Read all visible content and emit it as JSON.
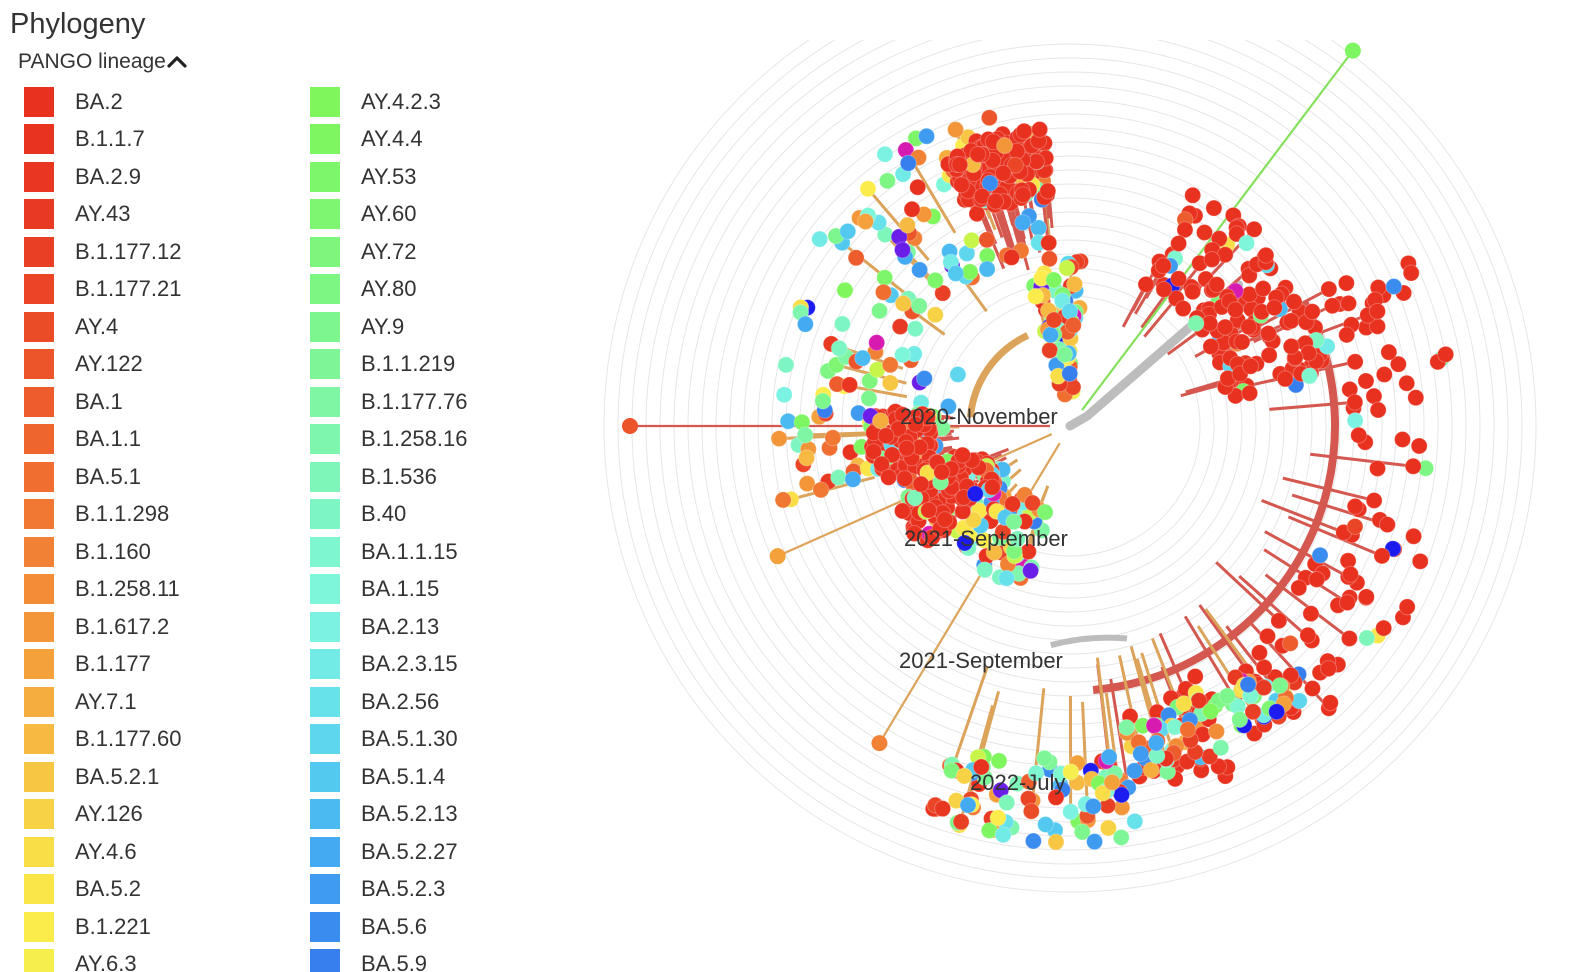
{
  "panel": {
    "title": "Phylogeny",
    "legend_header": "PANGO lineage",
    "legend_toggle_icon": "chevron-up-icon"
  },
  "legend": {
    "columns": [
      [
        {
          "label": "BA.2",
          "color": "#e8311f"
        },
        {
          "label": "B.1.1.7",
          "color": "#e8331f"
        },
        {
          "label": "BA.2.9",
          "color": "#e83620"
        },
        {
          "label": "AY.43",
          "color": "#e83a22"
        },
        {
          "label": "B.1.177.12",
          "color": "#e93f24"
        },
        {
          "label": "B.1.177.21",
          "color": "#ea4526"
        },
        {
          "label": "AY.4",
          "color": "#eb4c28"
        },
        {
          "label": "AY.122",
          "color": "#ec542a"
        },
        {
          "label": "BA.1",
          "color": "#ed5c2c"
        },
        {
          "label": "BA.1.1",
          "color": "#ee652e"
        },
        {
          "label": "BA.5.1",
          "color": "#ef6e30"
        },
        {
          "label": "B.1.1.298",
          "color": "#f07833"
        },
        {
          "label": "B.1.160",
          "color": "#f18235"
        },
        {
          "label": "B.1.258.11",
          "color": "#f28c37"
        },
        {
          "label": "B.1.617.2",
          "color": "#f3963a"
        },
        {
          "label": "B.1.177",
          "color": "#f4a13c"
        },
        {
          "label": "AY.7.1",
          "color": "#f5ad3e"
        },
        {
          "label": "B.1.177.60",
          "color": "#f6b941"
        },
        {
          "label": "BA.5.2.1",
          "color": "#f7c643"
        },
        {
          "label": "AY.126",
          "color": "#f8d245"
        },
        {
          "label": "AY.4.6",
          "color": "#f9de47"
        },
        {
          "label": "BA.5.2",
          "color": "#fae649"
        },
        {
          "label": "B.1.221",
          "color": "#fbec4b"
        },
        {
          "label": "AY.6.3",
          "color": "#f6ee4c"
        }
      ],
      [
        {
          "label": "AY.4.2.3",
          "color": "#7ff65c"
        },
        {
          "label": "AY.4.4",
          "color": "#7ef662"
        },
        {
          "label": "AY.53",
          "color": "#7ef66a"
        },
        {
          "label": "AY.60",
          "color": "#7ef672"
        },
        {
          "label": "AY.72",
          "color": "#7ef67b"
        },
        {
          "label": "AY.80",
          "color": "#7ef684"
        },
        {
          "label": "AY.9",
          "color": "#7ef68e"
        },
        {
          "label": "B.1.1.219",
          "color": "#7ef698"
        },
        {
          "label": "B.1.177.76",
          "color": "#7ef6a3"
        },
        {
          "label": "B.1.258.16",
          "color": "#7ef6ae"
        },
        {
          "label": "B.1.536",
          "color": "#7ef6b9"
        },
        {
          "label": "B.40",
          "color": "#7ef6c4"
        },
        {
          "label": "BA.1.1.15",
          "color": "#7ef6cf"
        },
        {
          "label": "BA.1.15",
          "color": "#7ef6d9"
        },
        {
          "label": "BA.2.13",
          "color": "#7bf2e2"
        },
        {
          "label": "BA.2.3.15",
          "color": "#72ebe6"
        },
        {
          "label": "BA.2.56",
          "color": "#68e2ea"
        },
        {
          "label": "BA.5.1.30",
          "color": "#5dd6ee"
        },
        {
          "label": "BA.5.1.4",
          "color": "#53c9f0"
        },
        {
          "label": "BA.5.2.13",
          "color": "#4bbaf1"
        },
        {
          "label": "BA.5.2.27",
          "color": "#44aaf1"
        },
        {
          "label": "BA.5.2.3",
          "color": "#3e9bf0"
        },
        {
          "label": "BA.5.6",
          "color": "#3a8cef"
        },
        {
          "label": "BA.5.9",
          "color": "#377fee"
        }
      ]
    ]
  },
  "tree": {
    "time_labels": [
      "2020-November",
      "2021-September",
      "2022-July",
      "2021-September"
    ],
    "colors": {
      "ring": "#e6e6e6",
      "trunk": "#bdbdbd",
      "red_branch": "#d4584f",
      "tan_branch": "#dca35a",
      "red_tip": "#e8311f"
    }
  }
}
